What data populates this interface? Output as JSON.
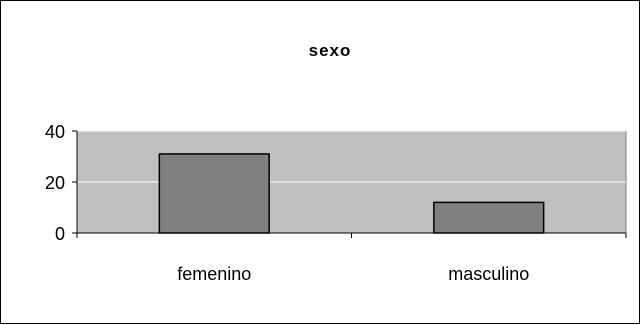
{
  "chart_data": {
    "type": "bar",
    "title": "sexo",
    "xlabel": "",
    "ylabel": "",
    "categories": [
      "femenino",
      "masculino"
    ],
    "values": [
      31,
      12
    ],
    "ylim": [
      0,
      40
    ],
    "yticks": [
      0,
      20,
      40
    ],
    "grid": true,
    "legend": "none",
    "colors": {
      "bar_fill": "#808080",
      "plot_background": "#c0c0c0",
      "gridline": "#ffffff",
      "frame": "#000000"
    }
  }
}
